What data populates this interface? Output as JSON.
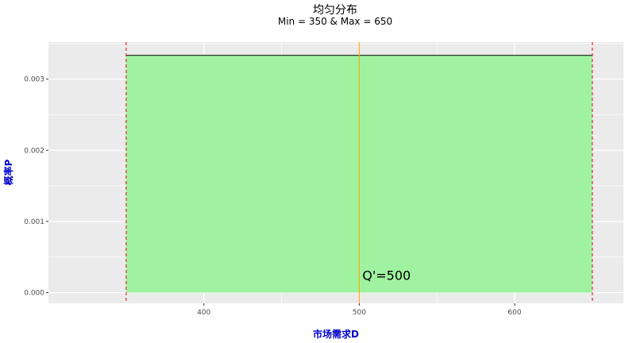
{
  "chart_data": {
    "type": "area",
    "title": "均匀分布",
    "subtitle": "Min = 350 & Max = 650",
    "xlabel": "市场需求D",
    "ylabel": "概率P",
    "xlim": [
      300,
      670
    ],
    "ylim": [
      -0.00015,
      0.00352
    ],
    "x_ticks": [
      400,
      500,
      600
    ],
    "x_tick_labels": [
      "400",
      "500",
      "600"
    ],
    "y_ticks": [
      0,
      0.001,
      0.002,
      0.003
    ],
    "y_tick_labels": [
      "0.000",
      "0.001",
      "0.002",
      "0.003"
    ],
    "grid": true,
    "legend": "none",
    "series": [
      {
        "x": [
          350,
          650
        ],
        "y": [
          0.003333,
          0.003333
        ]
      }
    ],
    "vlines": [
      {
        "x": 350,
        "style": "dashed",
        "color": "#e41a1c"
      },
      {
        "x": 650,
        "style": "dashed",
        "color": "#e41a1c"
      },
      {
        "x": 500,
        "style": "solid",
        "color": "#ffa500"
      }
    ],
    "annotation": {
      "text": "Q'=500",
      "x": 502,
      "y": 0.00018
    },
    "colors": {
      "fill": "#99f299",
      "line": "#000000",
      "panel": "#ebebeb",
      "grid": "#ffffff",
      "axis_title": "#0000cd"
    }
  }
}
